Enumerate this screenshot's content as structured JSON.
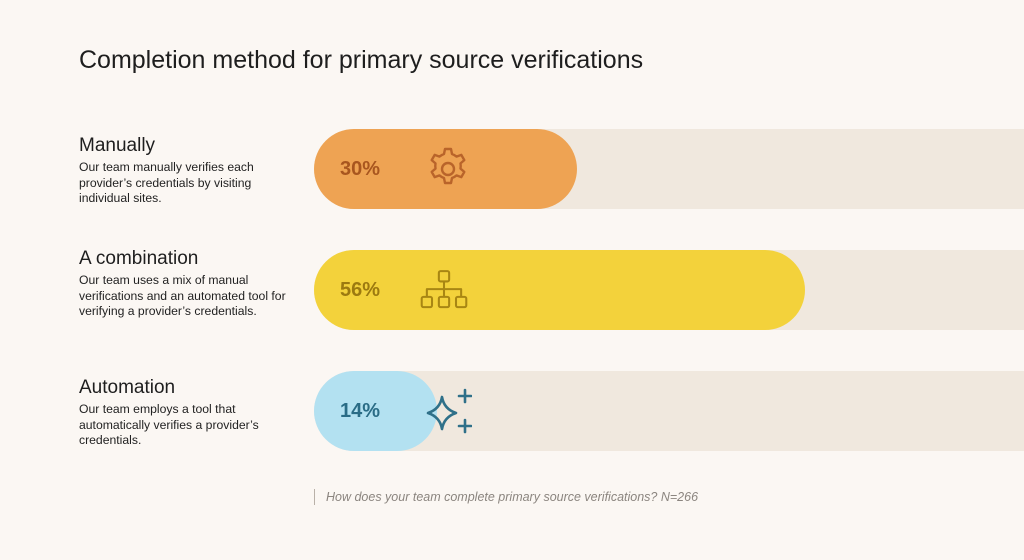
{
  "title": "Completion method for primary source verifications",
  "footnote": "How does your team complete primary source verifications? N=266",
  "chart_data": {
    "type": "bar",
    "orientation": "horizontal",
    "title": "Completion method for primary source verifications",
    "unit": "%",
    "xlim": [
      0,
      100
    ],
    "categories": [
      "Manually",
      "A combination",
      "Automation"
    ],
    "values": [
      30,
      56,
      14
    ],
    "labels": [
      "30%",
      "56%",
      "14%"
    ],
    "descriptions": [
      "Our team manually verifies each provider’s credentials by visiting individual sites.",
      "Our team uses a mix of manual verifications and an automated tool for verifying a provider’s credentials.",
      "Our team employs a tool that automatically verifies a provider’s credentials."
    ],
    "colors": [
      "#eea353",
      "#f3d23b",
      "#b3e1f1"
    ],
    "label_colors": [
      "#a8561f",
      "#9c7a10",
      "#2a6c86"
    ],
    "track_color": "#f0e8de",
    "icons": [
      "gear-icon",
      "hierarchy-icon",
      "sparkle-icon"
    ],
    "grid": false,
    "legend": "none"
  }
}
